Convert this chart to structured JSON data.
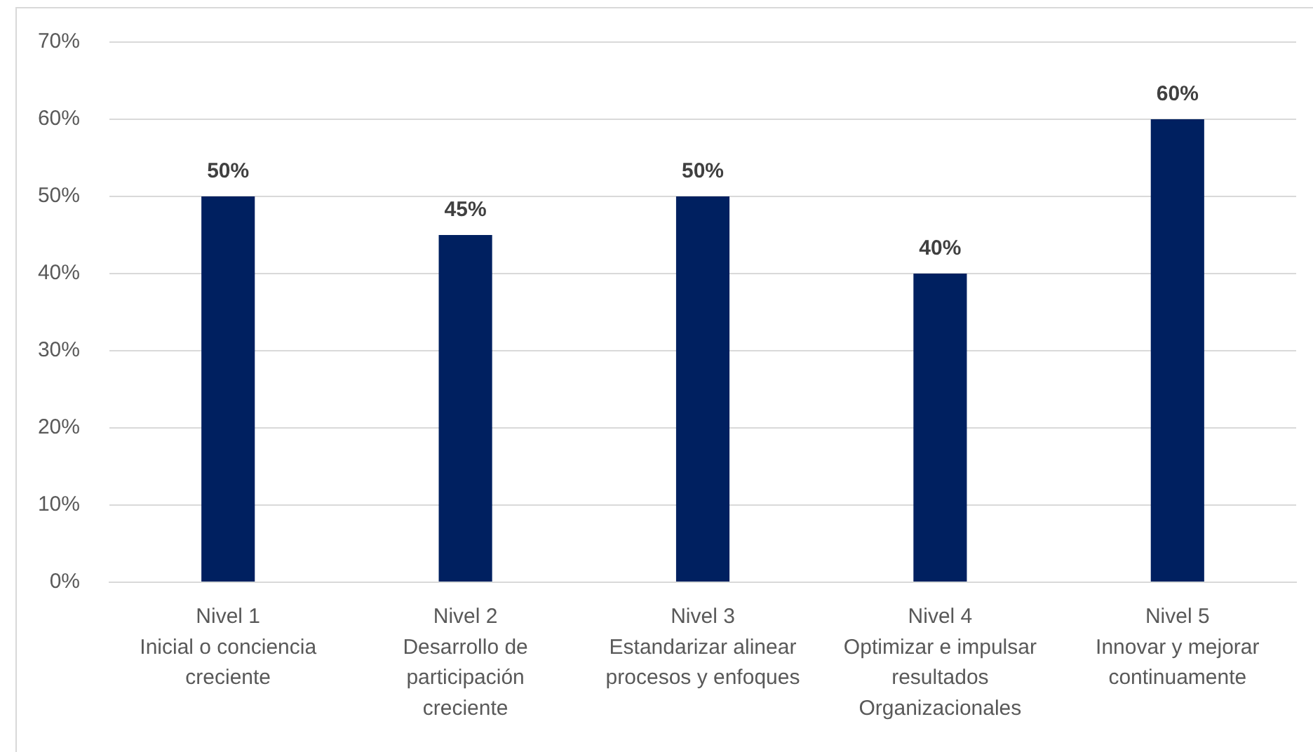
{
  "chart_data": {
    "type": "bar",
    "categories": [
      "Nivel 1\nInicial o conciencia creciente",
      "Nivel 2\nDesarrollo de participación creciente",
      "Nivel 3\nEstandarizar alinear procesos y enfoques",
      "Nivel 4\nOptimizar e impulsar resultados Organizacionales",
      "Nivel 5\nInnovar y mejorar continuamente"
    ],
    "values": [
      50,
      45,
      50,
      40,
      60
    ],
    "color": "#002060",
    "value_labels": [
      "50%",
      "45%",
      "50%",
      "40%",
      "60%"
    ],
    "ylim": [
      0,
      70
    ],
    "yticks": [
      {
        "value": 0,
        "label": "0%"
      },
      {
        "value": 10,
        "label": "10%"
      },
      {
        "value": 20,
        "label": "20%"
      },
      {
        "value": 30,
        "label": "30%"
      },
      {
        "value": 40,
        "label": "40%"
      },
      {
        "value": 50,
        "label": "50%"
      },
      {
        "value": 60,
        "label": "60%"
      },
      {
        "value": 70,
        "label": "70%"
      }
    ],
    "grid": "y"
  }
}
